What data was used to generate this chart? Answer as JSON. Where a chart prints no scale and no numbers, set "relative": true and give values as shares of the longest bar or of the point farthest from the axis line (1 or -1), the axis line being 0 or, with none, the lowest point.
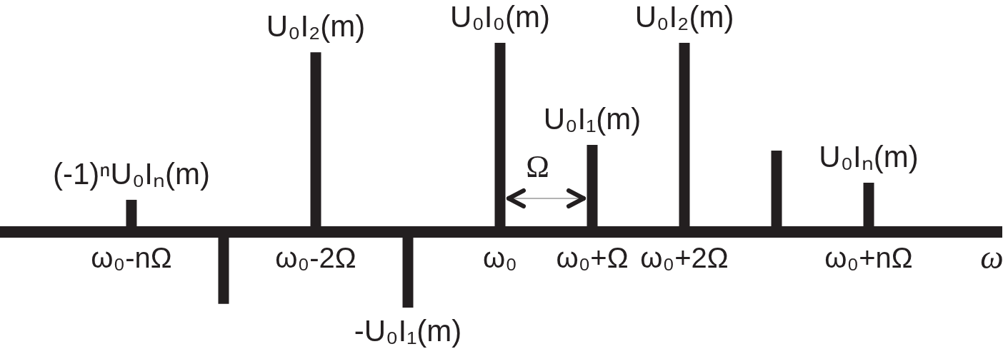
{
  "chart_data": {
    "type": "bar",
    "relative": true,
    "xlabel": "ω",
    "tick_labels": "x",
    "color": "#231f20",
    "categories": [
      "ω₀-nΩ",
      null,
      "ω₀-2Ω",
      null,
      "ω₀",
      "ω₀+Ω",
      "ω₀+2Ω",
      null,
      "ω₀+nΩ"
    ],
    "values": [
      0.17,
      -0.38,
      0.95,
      -0.4,
      1,
      0.46,
      1,
      0.43,
      0.26
    ],
    "annotations": [
      "Ω",
      {
        "text": "(-1)ⁿU₀Iₙ(m)",
        "x": "ω₀-nΩ",
        "y": 0.17
      },
      {
        "text": "U₀I₂(m)",
        "x": "ω₀-2Ω",
        "y": 0.95
      },
      {
        "text": "-U₀I₁(m)",
        "y": -0.4
      },
      {
        "text": "U₀I₀(m)",
        "x": "ω₀",
        "y": 1
      },
      {
        "text": "U₀I₁(m)",
        "x": "ω₀+Ω",
        "y": 0.46
      },
      {
        "text": "U₀I₂(m)",
        "x": "ω₀+2Ω",
        "y": 1
      },
      {
        "text": "U₀Iₙ(m)",
        "x": "ω₀+nΩ",
        "y": 0.26
      }
    ]
  }
}
